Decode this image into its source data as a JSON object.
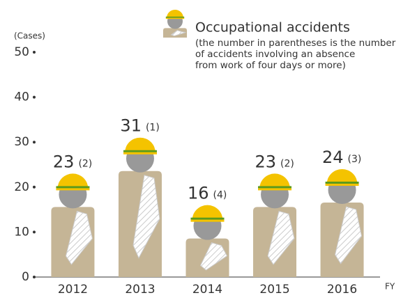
{
  "chart_data": {
    "type": "pictogram",
    "y_unit": "(Cases)",
    "x_label": "FY",
    "legend_note": [
      "(the number in parentheses is the number",
      "of accidents involving an absence",
      "from work of four days or more)"
    ],
    "categories": [
      "2012",
      "2013",
      "2014",
      "2015",
      "2016"
    ],
    "series": [
      {
        "name": "Occupational accidents",
        "color": "#c5b596",
        "values": [
          23,
          31,
          16,
          23,
          24
        ]
      },
      {
        "values": [
          2,
          1,
          4,
          2,
          3
        ],
        "value_labels": [
          "(2)",
          "(1)",
          "(4)",
          "(2)",
          "(3)"
        ]
      }
    ],
    "ylim": [
      0,
      50
    ],
    "yticks": [
      0,
      10,
      20,
      30,
      40,
      50
    ]
  }
}
